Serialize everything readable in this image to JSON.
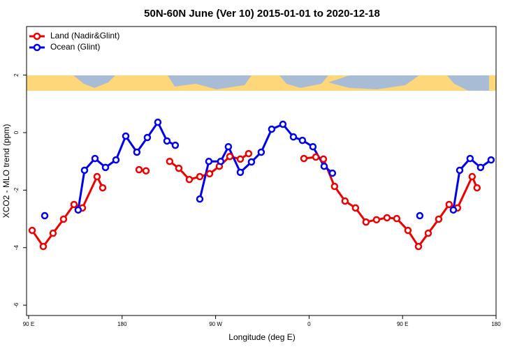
{
  "chart_data": {
    "type": "line",
    "title": "50N-60N June (Ver 10)   2015-01-01 to 2020-12-18",
    "xlabel": "Longitude (deg E)",
    "ylabel": "XCO2 - MLO trend (ppm)",
    "xlim": [
      88,
      540
    ],
    "ylim": [
      -6.36,
      3.69
    ],
    "xticks": [
      {
        "value": 90,
        "label": "90 E"
      },
      {
        "value": 180,
        "label": "180"
      },
      {
        "value": 270,
        "label": "90 W"
      },
      {
        "value": 360,
        "label": "0"
      },
      {
        "value": 450,
        "label": "90 E"
      },
      {
        "value": 540,
        "label": "180"
      }
    ],
    "yticks": [
      -6,
      -4,
      -2,
      0,
      2
    ],
    "legend": "top-left",
    "series": [
      {
        "name": "Land (Nadir&Glint)",
        "color": "#ee0000",
        "x": [
          93.4,
          104.1,
          113.5,
          123.6,
          133.7,
          141.8,
          155.9,
          161.3,
          null,
          196.3,
          203.0,
          null,
          225.8,
          234.6,
          244.7,
          254.8,
          264.2,
          273.6,
          283.7,
          293.8,
          301.8,
          null,
          355.0,
          366.5,
          373.8,
          384.5,
          394.6,
          404.7,
          414.8,
          424.9,
          435.0,
          444.4,
          455.2,
          465.3,
          474.7,
          484.8,
          494.8,
          502.9,
          517.0,
          521.7
        ],
        "values": [
          -3.4,
          -3.96,
          -3.5,
          -3.01,
          -2.5,
          -2.62,
          -1.53,
          -1.92,
          null,
          -1.29,
          -1.33,
          null,
          -1.0,
          -1.24,
          -1.63,
          -1.53,
          -1.43,
          -1.17,
          -0.83,
          -0.92,
          -0.73,
          null,
          -0.9,
          -0.85,
          -0.92,
          -1.87,
          -2.38,
          -2.62,
          -3.11,
          -3.03,
          -2.96,
          -2.99,
          -3.4,
          -3.96,
          -3.5,
          -3.01,
          -2.5,
          -2.62,
          -1.53,
          -1.92
        ]
      },
      {
        "name": "Ocean (Glint)",
        "color": "#0000ee",
        "x": [
          105.5,
          null,
          137.7,
          143.8,
          153.9,
          164.0,
          174.1,
          183.5,
          194.2,
          204.3,
          214.4,
          223.2,
          231.2,
          null,
          254.8,
          263.5,
          274.9,
          282.3,
          293.8,
          304.5,
          313.9,
          324.0,
          334.8,
          344.9,
          353.6,
          363.7,
          374.5,
          382.5,
          null,
          466.6,
          null,
          498.9,
          505.0,
          515.0,
          525.1,
          535.2
        ],
        "values": [
          -2.89,
          null,
          -2.69,
          -1.31,
          -0.9,
          -1.21,
          -0.95,
          -0.12,
          -0.68,
          -0.17,
          0.36,
          -0.29,
          -0.44,
          null,
          -2.31,
          -1.0,
          -1.0,
          -0.49,
          -1.38,
          -1.02,
          -0.68,
          0.12,
          0.29,
          -0.15,
          -0.27,
          -0.49,
          -1.17,
          -1.41,
          null,
          -2.89,
          null,
          -2.69,
          -1.31,
          -0.9,
          -1.21,
          -0.95
        ]
      }
    ]
  }
}
